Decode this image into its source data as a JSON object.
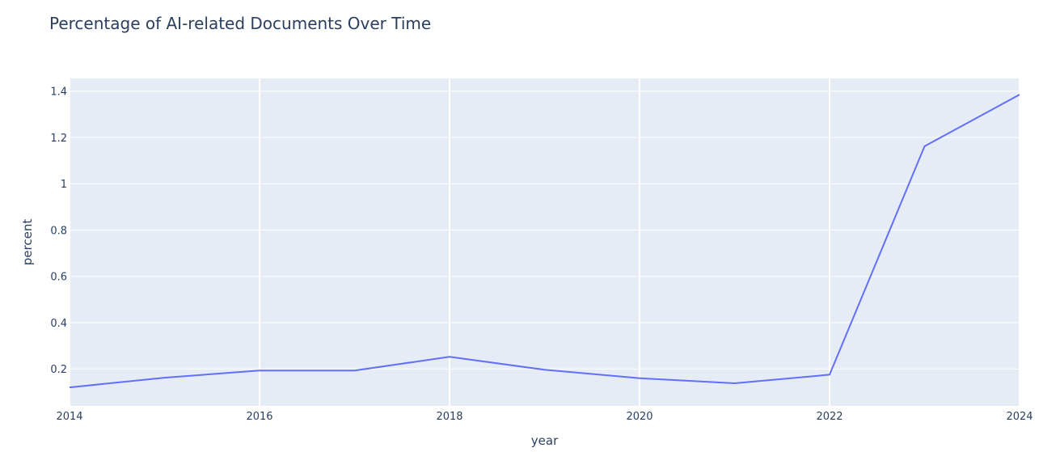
{
  "chart_data": {
    "type": "line",
    "title": "Percentage of AI-related Documents Over Time",
    "xlabel": "year",
    "ylabel": "percent",
    "xlim": [
      2014,
      2024
    ],
    "ylim": [
      0.04,
      1.455
    ],
    "x_ticks": [
      2014,
      2016,
      2018,
      2020,
      2022,
      2024
    ],
    "x_tick_labels": [
      "2014",
      "2016",
      "2018",
      "2020",
      "2022",
      "2024"
    ],
    "y_ticks": [
      0.2,
      0.4,
      0.6,
      0.8,
      1,
      1.2,
      1.4
    ],
    "y_tick_labels": [
      "0.2",
      "0.4",
      "0.6",
      "0.8",
      "1",
      "1.2",
      "1.4"
    ],
    "grid": true,
    "series": [
      {
        "x": [
          2014,
          2015,
          2016,
          2017,
          2018,
          2019,
          2020,
          2021,
          2022,
          2023,
          2024
        ],
        "values": [
          0.12,
          0.162,
          0.193,
          0.193,
          0.252,
          0.196,
          0.16,
          0.138,
          0.175,
          1.162,
          1.385
        ],
        "color": "#636efa"
      }
    ],
    "colors": {
      "plot_bg": "#e5ecf6",
      "grid": "#ffffff",
      "text": "#2a3f5f"
    }
  }
}
